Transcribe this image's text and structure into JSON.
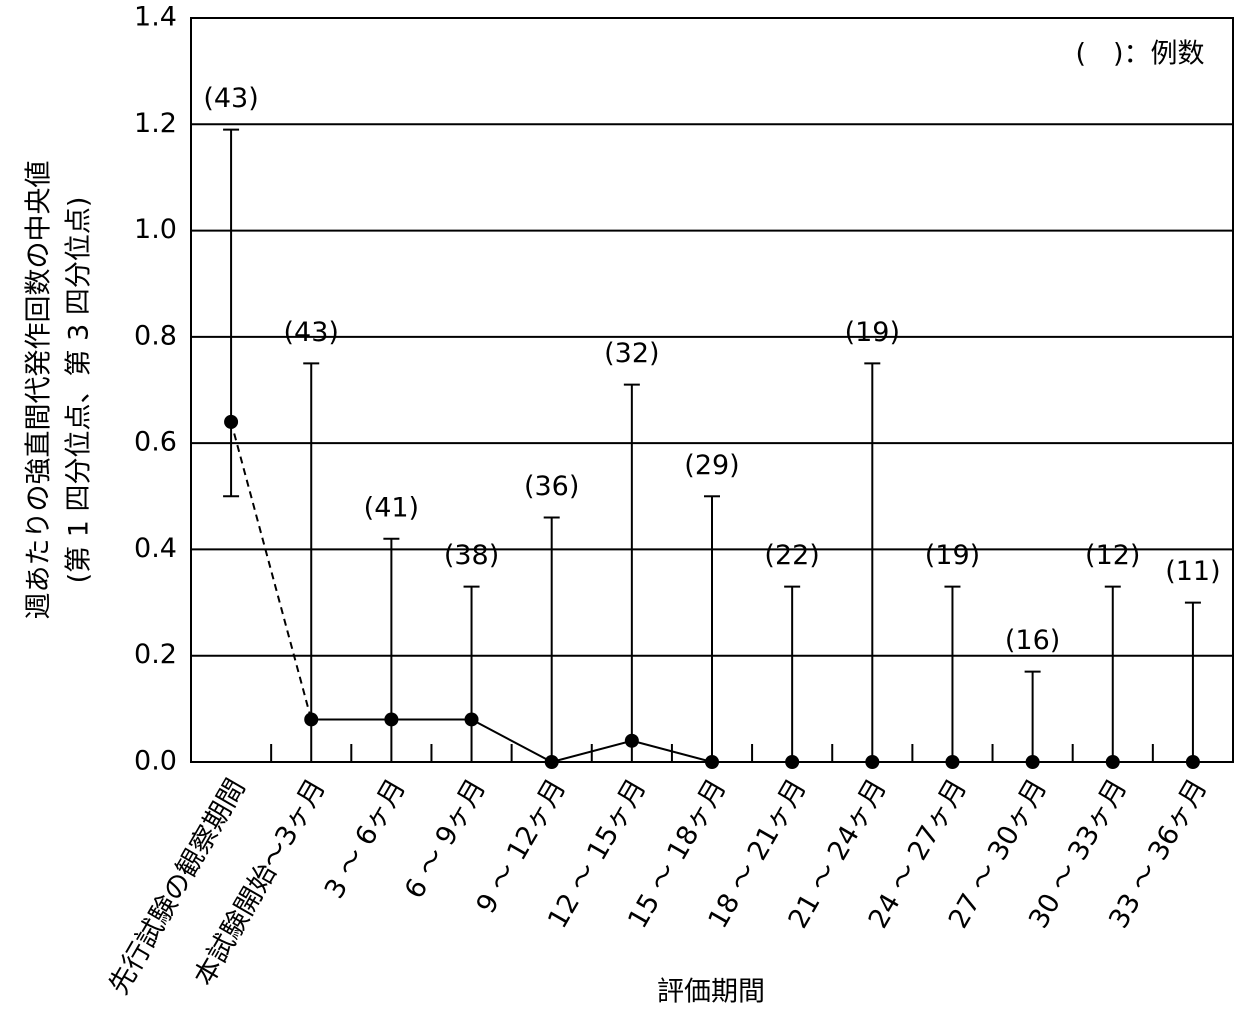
{
  "chart_data": {
    "type": "line",
    "ylabel": [
      "週あたりの強直間代発作回数の中央値",
      "(第 1 四分位点、第 3 四分位点)"
    ],
    "xlabel": "評価期間",
    "annotation": "(　)：例数",
    "categories": [
      "先行試験の観察期間",
      "本試験開始～3ヶ月",
      "3 ～ 6ヶ月",
      "6 ～ 9ヶ月",
      "9 ～ 12ヶ月",
      "12 ～ 15ヶ月",
      "15 ～ 18ヶ月",
      "18 ～ 21ヶ月",
      "21 ～ 24ヶ月",
      "24 ～ 27ヶ月",
      "27 ～ 30ヶ月",
      "30 ～ 33ヶ月",
      "33 ～ 36ヶ月"
    ],
    "values": [
      0.64,
      0.08,
      0.08,
      0.08,
      0,
      0.04,
      0,
      0,
      0,
      0,
      0,
      0,
      0
    ],
    "q1": [
      0.5,
      0,
      0,
      0,
      0,
      0,
      0,
      0,
      0,
      0,
      0,
      0,
      0
    ],
    "q3": [
      1.19,
      0.75,
      0.42,
      0.33,
      0.46,
      0.71,
      0.5,
      0.33,
      0.75,
      0.33,
      0.17,
      0.33,
      0.3
    ],
    "count_labels": [
      "(43)",
      "(43)",
      "(41)",
      "(38)",
      "(36)",
      "(32)",
      "(29)",
      "(22)",
      "(19)",
      "(19)",
      "(16)",
      "(12)",
      "(11)"
    ],
    "color": "#000000",
    "ylim": [
      0,
      1.4
    ],
    "yticks": [
      {
        "value": 0,
        "label": "0.0"
      },
      0.2,
      0.4,
      0.6,
      0.8,
      {
        "value": 1,
        "label": "1.0"
      },
      1.2,
      1.4
    ],
    "grid": true
  }
}
